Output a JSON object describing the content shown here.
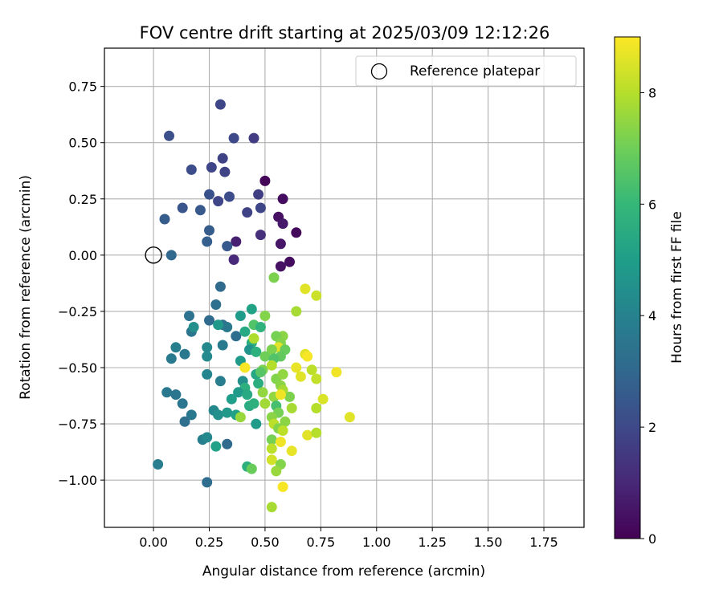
{
  "chart_data": {
    "type": "scatter",
    "title": "FOV centre drift starting at 2025/03/09 12:12:26",
    "xlabel": "Angular distance from reference (arcmin)",
    "ylabel": "Rotation from reference (arcmin)",
    "xlim": [
      -0.22,
      1.93
    ],
    "ylim": [
      -1.21,
      0.92
    ],
    "xticks": [
      0.0,
      0.25,
      0.5,
      0.75,
      1.0,
      1.25,
      1.5,
      1.75
    ],
    "xtick_labels": [
      "0.00",
      "0.25",
      "0.50",
      "0.75",
      "1.00",
      "1.25",
      "1.50",
      "1.75"
    ],
    "yticks": [
      0.75,
      0.5,
      0.25,
      0.0,
      -0.25,
      -0.5,
      -0.75,
      -1.0
    ],
    "ytick_labels": [
      "0.75",
      "0.50",
      "0.25",
      "0.00",
      "−0.25",
      "−0.50",
      "−0.75",
      "−1.00"
    ],
    "grid": true,
    "legend": {
      "position": "top-right",
      "entries": [
        "Reference platepar"
      ]
    },
    "reference_point": {
      "x": 0.0,
      "y": 0.0
    },
    "colorbar": {
      "label": "Hours from first FF file",
      "min": 0,
      "max": 9,
      "ticks": [
        0,
        2,
        4,
        6,
        8
      ],
      "tick_labels": [
        "0",
        "2",
        "4",
        "6",
        "8"
      ],
      "colormap": "viridis"
    },
    "points": [
      [
        0.5,
        0.33,
        0.1
      ],
      [
        0.58,
        0.25,
        0.3
      ],
      [
        0.56,
        0.17,
        0.4
      ],
      [
        0.58,
        0.14,
        0.6
      ],
      [
        0.64,
        0.1,
        0.2
      ],
      [
        0.57,
        0.05,
        0.5
      ],
      [
        0.37,
        0.06,
        0.8
      ],
      [
        0.61,
        -0.03,
        0.3
      ],
      [
        0.57,
        -0.05,
        0.4
      ],
      [
        0.36,
        -0.02,
        1.0
      ],
      [
        0.48,
        0.09,
        1.2
      ],
      [
        0.3,
        0.67,
        1.9
      ],
      [
        0.07,
        0.53,
        2.2
      ],
      [
        0.36,
        0.52,
        2.0
      ],
      [
        0.45,
        0.52,
        1.6
      ],
      [
        0.31,
        0.43,
        1.8
      ],
      [
        0.17,
        0.38,
        2.1
      ],
      [
        0.26,
        0.39,
        1.9
      ],
      [
        0.32,
        0.37,
        1.8
      ],
      [
        0.25,
        0.27,
        2.3
      ],
      [
        0.29,
        0.24,
        1.9
      ],
      [
        0.34,
        0.26,
        2.1
      ],
      [
        0.47,
        0.27,
        1.7
      ],
      [
        0.13,
        0.21,
        2.4
      ],
      [
        0.21,
        0.2,
        2.5
      ],
      [
        0.42,
        0.19,
        1.8
      ],
      [
        0.48,
        0.21,
        1.9
      ],
      [
        0.05,
        0.16,
        2.6
      ],
      [
        0.25,
        0.11,
        2.6
      ],
      [
        0.24,
        0.06,
        2.7
      ],
      [
        0.33,
        0.04,
        2.5
      ],
      [
        0.08,
        0.0,
        3.0
      ],
      [
        0.3,
        -0.14,
        3.1
      ],
      [
        0.28,
        -0.22,
        3.3
      ],
      [
        0.16,
        -0.27,
        3.4
      ],
      [
        0.25,
        -0.29,
        3.1
      ],
      [
        0.31,
        -0.31,
        3.3
      ],
      [
        0.33,
        -0.32,
        3.6
      ],
      [
        0.37,
        -0.36,
        3.2
      ],
      [
        0.17,
        -0.34,
        3.5
      ],
      [
        0.18,
        -0.32,
        4.5
      ],
      [
        0.29,
        -0.31,
        4.8
      ],
      [
        0.31,
        -0.4,
        3.7
      ],
      [
        0.24,
        -0.41,
        4.2
      ],
      [
        0.1,
        -0.41,
        3.9
      ],
      [
        0.08,
        -0.46,
        3.7
      ],
      [
        0.14,
        -0.44,
        3.6
      ],
      [
        0.24,
        -0.45,
        4.3
      ],
      [
        0.39,
        -0.27,
        4.9
      ],
      [
        0.44,
        -0.24,
        5.2
      ],
      [
        0.41,
        -0.34,
        5.4
      ],
      [
        0.44,
        -0.39,
        5.6
      ],
      [
        0.43,
        -0.42,
        4.6
      ],
      [
        0.46,
        -0.43,
        5.7
      ],
      [
        0.39,
        -0.47,
        4.9
      ],
      [
        0.3,
        -0.56,
        3.8
      ],
      [
        0.24,
        -0.53,
        4.1
      ],
      [
        0.4,
        -0.56,
        4.5
      ],
      [
        0.46,
        -0.53,
        5.3
      ],
      [
        0.47,
        -0.57,
        5.6
      ],
      [
        0.41,
        -0.59,
        5.7
      ],
      [
        0.38,
        -0.61,
        4.9
      ],
      [
        0.35,
        -0.64,
        5.0
      ],
      [
        0.06,
        -0.61,
        3.6
      ],
      [
        0.1,
        -0.62,
        3.5
      ],
      [
        0.13,
        -0.66,
        3.5
      ],
      [
        0.17,
        -0.71,
        3.6
      ],
      [
        0.14,
        -0.74,
        3.3
      ],
      [
        0.27,
        -0.69,
        4.2
      ],
      [
        0.29,
        -0.71,
        4.5
      ],
      [
        0.33,
        -0.7,
        4.8
      ],
      [
        0.37,
        -0.71,
        5.1
      ],
      [
        0.39,
        -0.72,
        7.6
      ],
      [
        0.43,
        -0.67,
        5.5
      ],
      [
        0.45,
        -0.66,
        5.7
      ],
      [
        0.46,
        -0.75,
        4.9
      ],
      [
        0.42,
        -0.62,
        5.4
      ],
      [
        0.22,
        -0.82,
        3.9
      ],
      [
        0.24,
        -0.81,
        4.2
      ],
      [
        0.28,
        -0.85,
        5.1
      ],
      [
        0.33,
        -0.84,
        3.1
      ],
      [
        0.02,
        -0.93,
        3.8
      ],
      [
        0.42,
        -0.94,
        5.7
      ],
      [
        0.44,
        -0.95,
        6.9
      ],
      [
        0.24,
        -1.01,
        3.2
      ],
      [
        0.45,
        -0.31,
        6.5
      ],
      [
        0.48,
        -0.32,
        5.8
      ],
      [
        0.5,
        -0.27,
        7.3
      ],
      [
        0.54,
        -0.1,
        7.2
      ],
      [
        0.58,
        -0.36,
        7.4
      ],
      [
        0.55,
        -0.36,
        7.1
      ],
      [
        0.57,
        -0.39,
        7.3
      ],
      [
        0.56,
        -0.41,
        8.6
      ],
      [
        0.53,
        -0.42,
        7.2
      ],
      [
        0.59,
        -0.42,
        6.9
      ],
      [
        0.57,
        -0.45,
        6.8
      ],
      [
        0.5,
        -0.45,
        7.0
      ],
      [
        0.49,
        -0.51,
        7.2
      ],
      [
        0.48,
        -0.52,
        6.6
      ],
      [
        0.54,
        -0.46,
        6.5
      ],
      [
        0.53,
        -0.49,
        8.0
      ],
      [
        0.55,
        -0.55,
        7.3
      ],
      [
        0.58,
        -0.53,
        7.5
      ],
      [
        0.57,
        -0.58,
        7.4
      ],
      [
        0.58,
        -0.6,
        7.8
      ],
      [
        0.54,
        -0.63,
        7.5
      ],
      [
        0.61,
        -0.63,
        7.2
      ],
      [
        0.57,
        -0.62,
        8.8
      ],
      [
        0.55,
        -0.67,
        6.3
      ],
      [
        0.56,
        -0.7,
        7.1
      ],
      [
        0.53,
        -0.72,
        7.4
      ],
      [
        0.54,
        -0.75,
        8.1
      ],
      [
        0.5,
        -0.66,
        7.7
      ],
      [
        0.49,
        -0.61,
        7.5
      ],
      [
        0.62,
        -0.68,
        7.8
      ],
      [
        0.59,
        -0.74,
        7.4
      ],
      [
        0.56,
        -0.77,
        7.3
      ],
      [
        0.58,
        -0.78,
        8.1
      ],
      [
        0.53,
        -0.82,
        7.1
      ],
      [
        0.53,
        -0.86,
        8.1
      ],
      [
        0.57,
        -0.83,
        8.8
      ],
      [
        0.62,
        -0.87,
        8.7
      ],
      [
        0.53,
        -0.91,
        8.4
      ],
      [
        0.57,
        -0.93,
        7.3
      ],
      [
        0.55,
        -0.96,
        7.6
      ],
      [
        0.58,
        -1.03,
        8.9
      ],
      [
        0.53,
        -1.12,
        7.8
      ],
      [
        0.41,
        -0.5,
        8.9
      ],
      [
        0.45,
        -0.37,
        7.9
      ],
      [
        0.68,
        -0.15,
        8.6
      ],
      [
        0.73,
        -0.18,
        8.3
      ],
      [
        0.64,
        -0.25,
        7.8
      ],
      [
        0.68,
        -0.44,
        8.6
      ],
      [
        0.69,
        -0.45,
        8.9
      ],
      [
        0.64,
        -0.5,
        8.7
      ],
      [
        0.66,
        -0.54,
        8.6
      ],
      [
        0.71,
        -0.51,
        8.1
      ],
      [
        0.73,
        -0.55,
        8.2
      ],
      [
        0.82,
        -0.52,
        8.8
      ],
      [
        0.76,
        -0.64,
        8.5
      ],
      [
        0.73,
        -0.68,
        8.0
      ],
      [
        0.88,
        -0.72,
        8.6
      ],
      [
        0.69,
        -0.8,
        8.6
      ],
      [
        0.73,
        -0.79,
        8.0
      ]
    ]
  }
}
